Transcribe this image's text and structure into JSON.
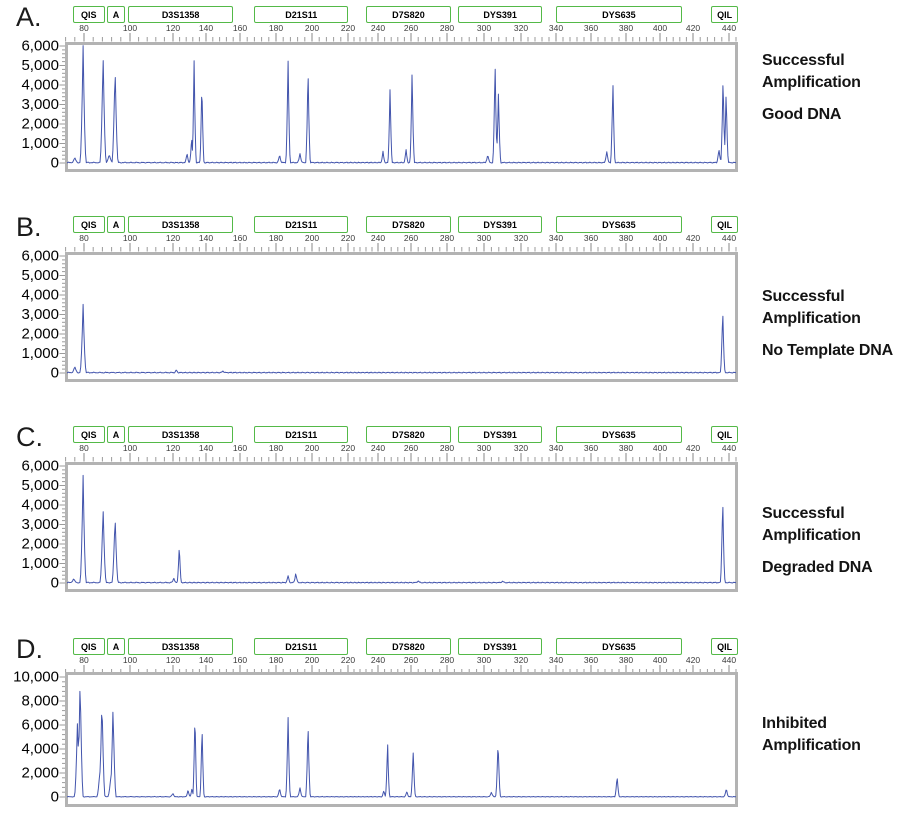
{
  "figure": {
    "colors": {
      "trace": "#4355ad",
      "marker_border": "#54b948",
      "plot_border": "#b3b3b3",
      "tick": "#9b9b9b",
      "axis_text": "#3a3a3a",
      "label_text": "#000000"
    },
    "x_axis": {
      "tick_labels": [
        "80",
        "100",
        "120",
        "140",
        "160",
        "180",
        "200",
        "220",
        "240",
        "260",
        "280",
        "300",
        "320",
        "340",
        "360",
        "380",
        "400",
        "420",
        "440"
      ]
    },
    "panels": [
      {
        "letter": "A.",
        "markers": [
          "QIS",
          "A",
          "D3S1358",
          "D21S11",
          "D7S820",
          "DYS391",
          "DYS635",
          "QIL"
        ],
        "y_axis": {
          "labels": [
            "6,000",
            "5,000",
            "4,000",
            "3,000",
            "2,000",
            "1,000",
            "0"
          ]
        },
        "caption": {
          "lines": [
            "Successful",
            "Amplification"
          ],
          "emphasis": "Good DNA"
        }
      },
      {
        "letter": "B.",
        "markers": [
          "QIS",
          "A",
          "D3S1358",
          "D21S11",
          "D7S820",
          "DYS391",
          "DYS635",
          "QIL"
        ],
        "y_axis": {
          "labels": [
            "6,000",
            "5,000",
            "4,000",
            "3,000",
            "2,000",
            "1,000",
            "0"
          ]
        },
        "caption": {
          "lines": [
            "Successful",
            "Amplification"
          ],
          "emphasis": "No Template DNA"
        }
      },
      {
        "letter": "C.",
        "markers": [
          "QIS",
          "A",
          "D3S1358",
          "D21S11",
          "D7S820",
          "DYS391",
          "DYS635",
          "QIL"
        ],
        "y_axis": {
          "labels": [
            "6,000",
            "5,000",
            "4,000",
            "3,000",
            "2,000",
            "1,000",
            "0"
          ]
        },
        "caption": {
          "lines": [
            "Successful",
            "Amplification"
          ],
          "emphasis": "Degraded DNA"
        }
      },
      {
        "letter": "D.",
        "markers": [
          "QIS",
          "A",
          "D3S1358",
          "D21S11",
          "D7S820",
          "DYS391",
          "DYS635",
          "QIL"
        ],
        "y_axis": {
          "labels": [
            "10,000",
            "8,000",
            "6,000",
            "4,000",
            "2,000",
            "0"
          ]
        },
        "caption": {
          "lines": [
            "Inhibited",
            "Amplification"
          ],
          "emphasis": null
        }
      }
    ]
  },
  "chart_data": [
    {
      "type": "line",
      "panel": "A",
      "annotation": "Successful Amplification — Good DNA",
      "x_unit": "bases",
      "x_ticks": [
        80,
        100,
        120,
        140,
        160,
        180,
        200,
        220,
        240,
        260,
        280,
        300,
        320,
        340,
        360,
        380,
        400,
        420,
        440
      ],
      "xlim": [
        70,
        446
      ],
      "y_ticks": [
        0,
        1000,
        2000,
        3000,
        4000,
        5000,
        6000
      ],
      "ylim": [
        0,
        6400
      ],
      "markers": [
        {
          "name": "QIS",
          "span_bp": [
            75,
            88.3
          ]
        },
        {
          "name": "A",
          "span_bp": [
            90,
            97
          ]
        },
        {
          "name": "D3S1358",
          "span_bp": [
            99,
            155
          ]
        },
        {
          "name": "D21S11",
          "span_bp": [
            168,
            219
          ]
        },
        {
          "name": "D7S820",
          "span_bp": [
            232,
            281
          ]
        },
        {
          "name": "DYS391",
          "span_bp": [
            286,
            331
          ]
        },
        {
          "name": "DYS635",
          "span_bp": [
            340,
            412
          ]
        },
        {
          "name": "QIL",
          "span_bp": [
            430,
            444
          ]
        }
      ],
      "peaks": [
        [
          76,
          250
        ],
        [
          79.6,
          6000
        ],
        [
          88.3,
          5600
        ],
        [
          91,
          450
        ],
        [
          93.5,
          5000
        ],
        [
          128.5,
          500
        ],
        [
          131.3,
          1300
        ],
        [
          132.8,
          5200
        ],
        [
          137.5,
          4100
        ],
        [
          182,
          400
        ],
        [
          186.7,
          5200
        ],
        [
          193.3,
          500
        ],
        [
          197.8,
          4900
        ],
        [
          243,
          600
        ],
        [
          247.3,
          4000
        ],
        [
          257,
          700
        ],
        [
          260.6,
          4800
        ],
        [
          302,
          400
        ],
        [
          306,
          5100
        ],
        [
          307.8,
          3500
        ],
        [
          369,
          600
        ],
        [
          372.5,
          4200
        ],
        [
          434.4,
          700
        ],
        [
          436.7,
          4500
        ],
        [
          438.4,
          3600
        ]
      ]
    },
    {
      "type": "line",
      "panel": "B",
      "annotation": "Successful Amplification — No Template DNA",
      "x_unit": "bases",
      "x_ticks": [
        80,
        100,
        120,
        140,
        160,
        180,
        200,
        220,
        240,
        260,
        280,
        300,
        320,
        340,
        360,
        380,
        400,
        420,
        440
      ],
      "xlim": [
        70,
        446
      ],
      "y_ticks": [
        0,
        1000,
        2000,
        3000,
        4000,
        5000,
        6000
      ],
      "ylim": [
        0,
        6400
      ],
      "markers": [
        {
          "name": "QIS",
          "span_bp": [
            75,
            88.3
          ]
        },
        {
          "name": "A",
          "span_bp": [
            90,
            97
          ]
        },
        {
          "name": "D3S1358",
          "span_bp": [
            99,
            155
          ]
        },
        {
          "name": "D21S11",
          "span_bp": [
            168,
            219
          ]
        },
        {
          "name": "D7S820",
          "span_bp": [
            232,
            281
          ]
        },
        {
          "name": "DYS391",
          "span_bp": [
            286,
            331
          ]
        },
        {
          "name": "DYS635",
          "span_bp": [
            340,
            412
          ]
        },
        {
          "name": "QIL",
          "span_bp": [
            430,
            444
          ]
        }
      ],
      "peaks": [
        [
          76,
          300
        ],
        [
          79.6,
          3500
        ],
        [
          122,
          130
        ],
        [
          150,
          90
        ],
        [
          436.5,
          3300
        ]
      ]
    },
    {
      "type": "line",
      "panel": "C",
      "annotation": "Successful Amplification — Degraded DNA",
      "x_unit": "bases",
      "x_ticks": [
        80,
        100,
        120,
        140,
        160,
        180,
        200,
        220,
        240,
        260,
        280,
        300,
        320,
        340,
        360,
        380,
        400,
        420,
        440
      ],
      "xlim": [
        70,
        446
      ],
      "y_ticks": [
        0,
        1000,
        2000,
        3000,
        4000,
        5000,
        6000
      ],
      "ylim": [
        0,
        6400
      ],
      "markers": [
        {
          "name": "QIS",
          "span_bp": [
            75,
            88.3
          ]
        },
        {
          "name": "A",
          "span_bp": [
            90,
            97
          ]
        },
        {
          "name": "D3S1358",
          "span_bp": [
            99,
            155
          ]
        },
        {
          "name": "D21S11",
          "span_bp": [
            168,
            219
          ]
        },
        {
          "name": "D7S820",
          "span_bp": [
            232,
            281
          ]
        },
        {
          "name": "DYS391",
          "span_bp": [
            286,
            331
          ]
        },
        {
          "name": "DYS635",
          "span_bp": [
            340,
            412
          ]
        },
        {
          "name": "QIL",
          "span_bp": [
            430,
            444
          ]
        }
      ],
      "peaks": [
        [
          75.5,
          200
        ],
        [
          79.6,
          5500
        ],
        [
          88.3,
          3900
        ],
        [
          93.5,
          3500
        ],
        [
          120.5,
          250
        ],
        [
          123.8,
          1900
        ],
        [
          186.7,
          350
        ],
        [
          191,
          500
        ],
        [
          264,
          90
        ],
        [
          310,
          80
        ],
        [
          436.5,
          4400
        ]
      ]
    },
    {
      "type": "line",
      "panel": "D",
      "annotation": "Inhibited Amplification",
      "x_unit": "bases",
      "x_ticks": [
        80,
        100,
        120,
        140,
        160,
        180,
        200,
        220,
        240,
        260,
        280,
        300,
        320,
        340,
        360,
        380,
        400,
        420,
        440
      ],
      "xlim": [
        70,
        446
      ],
      "y_ticks": [
        0,
        2000,
        4000,
        6000,
        8000,
        10000
      ],
      "ylim": [
        0,
        10600
      ],
      "markers": [
        {
          "name": "QIS",
          "span_bp": [
            75,
            88.3
          ]
        },
        {
          "name": "A",
          "span_bp": [
            90,
            97
          ]
        },
        {
          "name": "D3S1358",
          "span_bp": [
            99,
            155
          ]
        },
        {
          "name": "D21S11",
          "span_bp": [
            168,
            219
          ]
        },
        {
          "name": "D7S820",
          "span_bp": [
            232,
            281
          ]
        },
        {
          "name": "DYS391",
          "span_bp": [
            286,
            331
          ]
        },
        {
          "name": "DYS635",
          "span_bp": [
            340,
            412
          ]
        },
        {
          "name": "QIL",
          "span_bp": [
            430,
            444
          ]
        }
      ],
      "peaks": [
        [
          77.2,
          6500
        ],
        [
          78.3,
          10000
        ],
        [
          86.9,
          2200
        ],
        [
          87.8,
          8300
        ],
        [
          91.7,
          1700
        ],
        [
          92.6,
          7500
        ],
        [
          120,
          300
        ],
        [
          129.1,
          600
        ],
        [
          131.5,
          700
        ],
        [
          133.3,
          7000
        ],
        [
          137.6,
          5900
        ],
        [
          182,
          700
        ],
        [
          186.7,
          6600
        ],
        [
          193.3,
          800
        ],
        [
          197.8,
          6200
        ],
        [
          243.5,
          500
        ],
        [
          245.8,
          4600
        ],
        [
          257.5,
          450
        ],
        [
          261.2,
          3900
        ],
        [
          304,
          400
        ],
        [
          307.6,
          4700
        ],
        [
          374.9,
          1700
        ],
        [
          438.5,
          700
        ]
      ]
    }
  ]
}
